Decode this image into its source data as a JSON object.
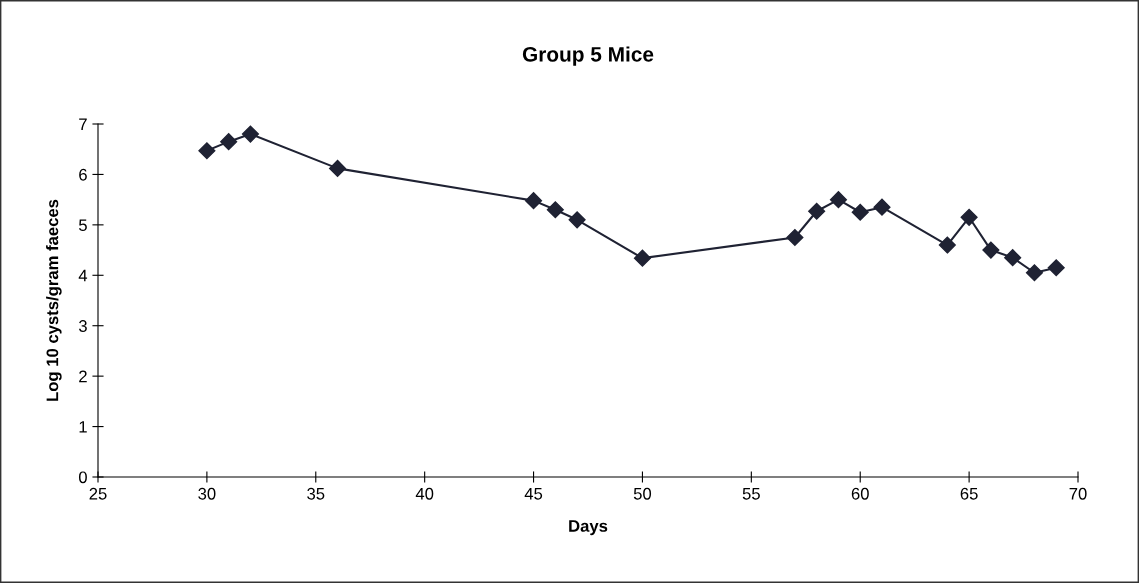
{
  "chart_data": {
    "type": "line",
    "title": "Group 5 Mice",
    "xlabel": "Days",
    "ylabel": "Log 10 cysts/gram faeces",
    "x": [
      30,
      31,
      32,
      36,
      45,
      46,
      47,
      50,
      57,
      58,
      59,
      60,
      61,
      64,
      65,
      66,
      67,
      68,
      69
    ],
    "series": [
      {
        "color": "#1f2233",
        "values": [
          6.47,
          6.65,
          6.8,
          6.12,
          5.48,
          5.3,
          5.1,
          4.34,
          4.75,
          5.27,
          5.5,
          5.25,
          5.35,
          4.6,
          5.15,
          4.5,
          4.35,
          4.05,
          4.15
        ]
      }
    ],
    "xlim": [
      25,
      70
    ],
    "xticks": [
      25,
      30,
      35,
      40,
      45,
      50,
      55,
      60,
      65,
      70
    ],
    "ylim": [
      0,
      7
    ],
    "yticks": [
      0,
      1,
      2,
      3,
      4,
      5,
      6,
      7
    ],
    "grid": false,
    "marker": "diamond",
    "line_style": "solid"
  }
}
